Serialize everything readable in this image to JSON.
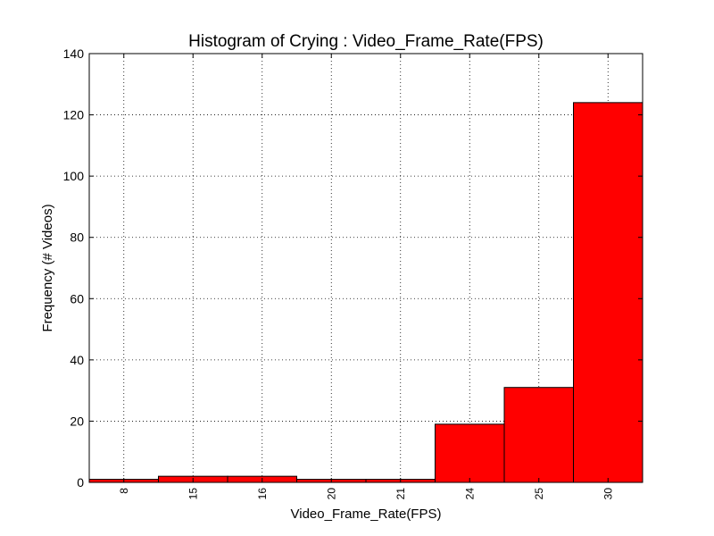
{
  "chart_data": {
    "type": "bar",
    "title": "Histogram of Crying : Video_Frame_Rate(FPS)",
    "xlabel": "Video_Frame_Rate(FPS)",
    "ylabel": "Frequency (# Videos)",
    "categories": [
      "8",
      "15",
      "16",
      "20",
      "21",
      "24",
      "25",
      "30"
    ],
    "values": [
      1,
      2,
      2,
      1,
      1,
      19,
      31,
      124
    ],
    "ylim": [
      0,
      140
    ],
    "yticks": [
      0,
      20,
      40,
      60,
      80,
      100,
      120,
      140
    ],
    "grid": true,
    "bar_color": "#ff0000",
    "edge_color": "#000000"
  }
}
